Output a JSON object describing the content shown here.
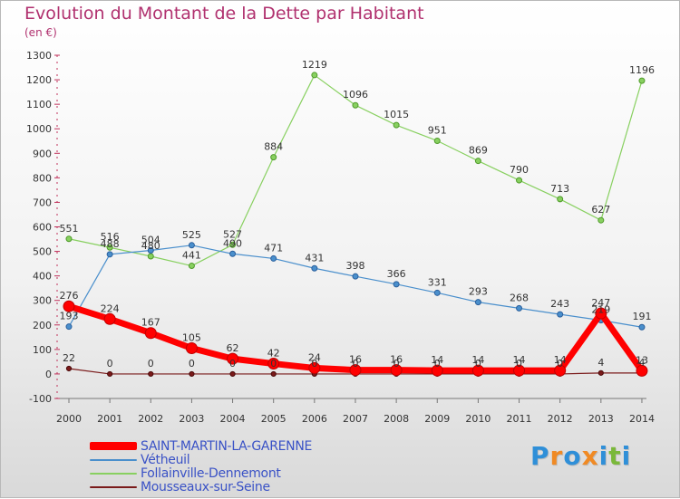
{
  "title": "Evolution du Montant de la Dette par Habitant",
  "subtitle": "(en €)",
  "logo": {
    "text": "Proxiti",
    "letters": [
      {
        "ch": "P",
        "color": "#2f8fd8"
      },
      {
        "ch": "r",
        "color": "#f08a24"
      },
      {
        "ch": "o",
        "color": "#2f8fd8"
      },
      {
        "ch": "x",
        "color": "#f08a24"
      },
      {
        "ch": "i",
        "color": "#2f8fd8"
      },
      {
        "ch": "t",
        "color": "#7ab83a"
      },
      {
        "ch": "i",
        "color": "#2f8fd8"
      }
    ]
  },
  "chart_data": {
    "type": "line",
    "title": "Evolution du Montant de la Dette par Habitant",
    "subtitle": "(en €)",
    "xlabel": "",
    "ylabel": "",
    "x": [
      "2000",
      "2001",
      "2002",
      "2003",
      "2004",
      "2005",
      "2006",
      "2007",
      "2008",
      "2009",
      "2010",
      "2011",
      "2012",
      "2013",
      "2014"
    ],
    "ylim": [
      -100,
      1300
    ],
    "yticks": [
      -100,
      0,
      100,
      200,
      300,
      400,
      500,
      600,
      700,
      800,
      900,
      1000,
      1100,
      1200,
      1300
    ],
    "grid": false,
    "legend": "bottom-left",
    "series": [
      {
        "name": "SAINT-MARTIN-LA-GARENNE",
        "color": "#ff0000",
        "values": [
          276,
          224,
          167,
          105,
          62,
          42,
          24,
          16,
          16,
          14,
          14,
          14,
          14,
          247,
          13
        ],
        "labels": [
          "276",
          "224",
          "167",
          "105",
          "62",
          "42",
          "24",
          "16",
          "16",
          "14",
          "14",
          "14",
          "14",
          "247",
          "13"
        ]
      },
      {
        "name": "Vétheuil",
        "color": "#4a8fcc",
        "values": [
          193,
          488,
          504,
          525,
          490,
          471,
          431,
          398,
          366,
          331,
          293,
          268,
          243,
          219,
          191
        ],
        "labels": [
          "193",
          "488",
          "504",
          "525",
          "490",
          "471",
          "431",
          "398",
          "366",
          "331",
          "293",
          "268",
          "243",
          "219",
          "191"
        ]
      },
      {
        "name": "Follainville-Dennemont",
        "color": "#88d060",
        "values": [
          551,
          516,
          480,
          441,
          527,
          884,
          1219,
          1096,
          1015,
          951,
          869,
          790,
          713,
          627,
          1196
        ],
        "labels": [
          "551",
          "516",
          "480",
          "441",
          "527",
          "884",
          "1219",
          "1096",
          "1015",
          "951",
          "869",
          "790",
          "713",
          "627",
          "1196"
        ]
      },
      {
        "name": "Mousseaux-sur-Seine",
        "color": "#7a1a1a",
        "values": [
          22,
          0,
          0,
          0,
          0,
          0,
          0,
          0,
          0,
          0,
          0,
          0,
          0,
          4,
          4
        ],
        "labels": [
          "22",
          "0",
          "0",
          "0",
          "0",
          "0",
          "0",
          "0",
          "0",
          "0",
          "0",
          "0",
          "0",
          "4",
          "4"
        ]
      }
    ]
  }
}
